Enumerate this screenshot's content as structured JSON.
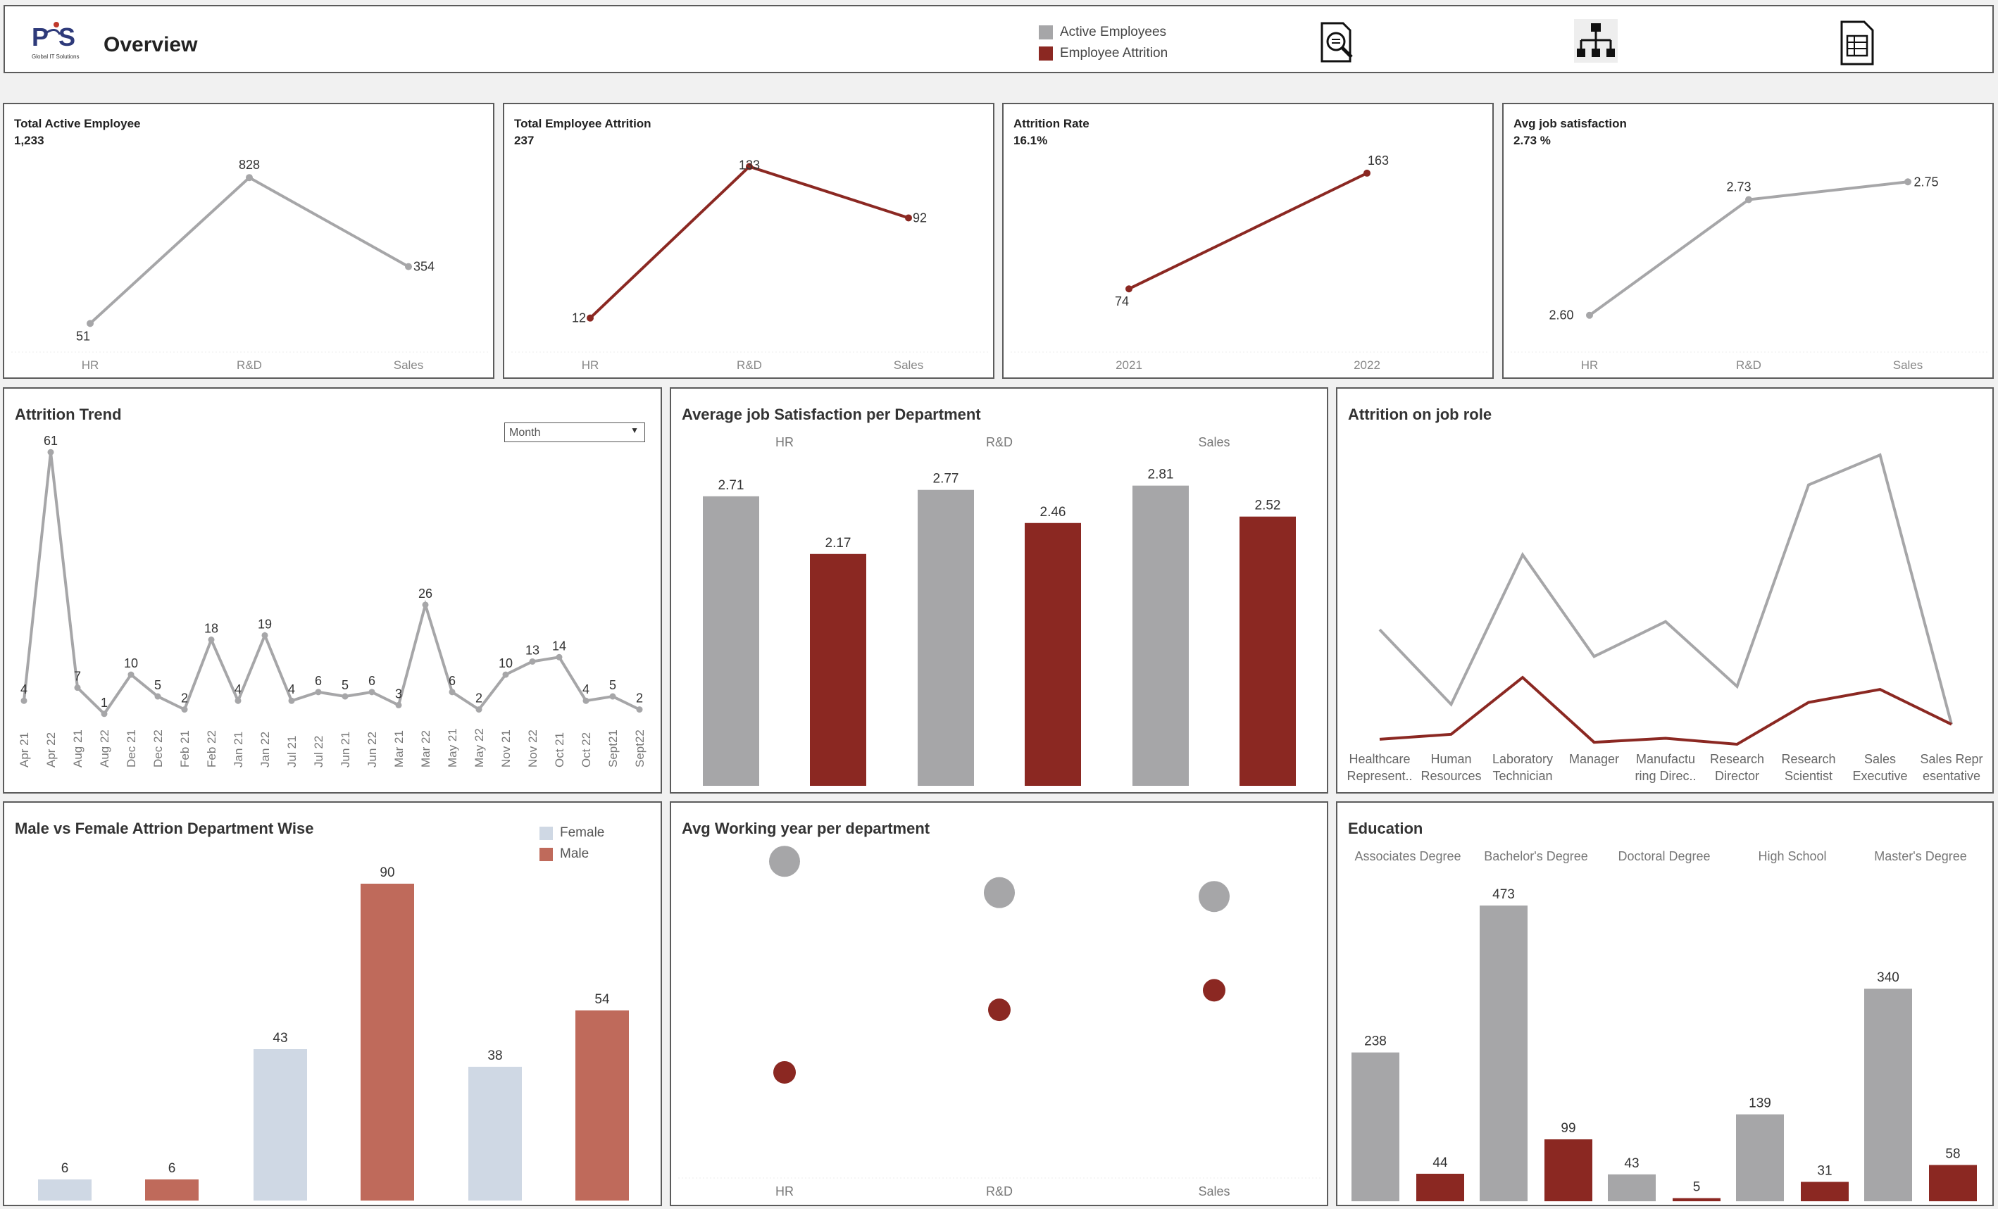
{
  "header": {
    "logo_text": "Global IT Solutions",
    "title": "Overview",
    "legend": [
      {
        "label": "Active Employees",
        "color": "#a6a6a8"
      },
      {
        "label": "Employee Attrition",
        "color": "#8b2822"
      }
    ],
    "nav_icons": [
      "report-search-icon",
      "org-chart-icon",
      "table-sheet-icon"
    ]
  },
  "colors": {
    "active": "#a6a6a8",
    "attrition": "#8b2822",
    "female": "#cfd8e4",
    "male": "#bf6a5b"
  },
  "kpis": [
    {
      "title": "Total Active Employee",
      "value": "1,233",
      "chart_data": {
        "type": "line",
        "x": [
          "HR",
          "R&D",
          "Sales"
        ],
        "values": [
          51,
          828,
          354
        ],
        "labels": [
          "51",
          "828",
          "354"
        ],
        "series_color": "active",
        "ylim": [
          0,
          900
        ]
      }
    },
    {
      "title": "Total Employee Attrition",
      "value": "237",
      "chart_data": {
        "type": "line",
        "x": [
          "HR",
          "R&D",
          "Sales"
        ],
        "values": [
          12,
          133,
          92
        ],
        "labels": [
          "12",
          "133",
          "92"
        ],
        "series_color": "attrition",
        "ylim": [
          0,
          135
        ]
      }
    },
    {
      "title": "Attrition Rate",
      "value": "16.1%",
      "chart_data": {
        "type": "line",
        "x": [
          "2021",
          "2022"
        ],
        "values": [
          74,
          163
        ],
        "labels": [
          "74",
          "163"
        ],
        "series_color": "attrition",
        "ylim": [
          40,
          170
        ]
      }
    },
    {
      "title": "Avg job satisfaction",
      "value": "2.73 %",
      "chart_data": {
        "type": "line",
        "x": [
          "HR",
          "R&D",
          "Sales"
        ],
        "values": [
          2.6,
          2.73,
          2.75
        ],
        "labels": [
          "2.60",
          "2.73",
          "2.75"
        ],
        "series_color": "active",
        "ylim": [
          2.58,
          2.77
        ]
      }
    }
  ],
  "attrition_trend": {
    "title": "Attrition Trend",
    "dropdown_value": "Month",
    "chart_data": {
      "type": "line",
      "x": [
        "Apr 21",
        "Apr 22",
        "Aug 21",
        "Aug 22",
        "Dec 21",
        "Dec 22",
        "Feb 21",
        "Feb 22",
        "Jan 21",
        "Jan 22",
        "Jul 21",
        "Jul 22",
        "Jun 21",
        "Jun 22",
        "Mar 21",
        "Mar 22",
        "May 21",
        "May 22",
        "Nov 21",
        "Nov 22",
        "Oct 21",
        "Oct 22",
        "Sept21",
        "Sept22"
      ],
      "values": [
        4,
        61,
        7,
        1,
        10,
        5,
        2,
        18,
        4,
        19,
        4,
        6,
        5,
        6,
        3,
        26,
        6,
        2,
        10,
        13,
        14,
        4,
        5,
        2
      ],
      "ylim": [
        0,
        62
      ]
    }
  },
  "job_satisfaction": {
    "title": "Average job Satisfaction per Department",
    "chart_data": {
      "type": "bar",
      "categories": [
        "HR",
        "R&D",
        "Sales"
      ],
      "series": [
        {
          "name": "Active Employees",
          "values": [
            2.71,
            2.77,
            2.81
          ]
        },
        {
          "name": "Employee Attrition",
          "values": [
            2.17,
            2.46,
            2.52
          ]
        }
      ],
      "ylim": [
        0,
        2.9
      ]
    }
  },
  "job_role": {
    "title": "Attrition on job role",
    "chart_data": {
      "type": "line",
      "x_lines": [
        [
          "Healthcare",
          "Represent.."
        ],
        [
          "Human",
          "Resources"
        ],
        [
          "Laboratory",
          "Technician"
        ],
        [
          "Manager",
          ""
        ],
        [
          "Manufactu",
          "ring Direc.."
        ],
        [
          "Research",
          "Director"
        ],
        [
          "Research",
          "Scientist"
        ],
        [
          "Sales",
          "Executive"
        ],
        [
          "Sales Repr",
          "esentative"
        ]
      ],
      "series": [
        {
          "name": "Active Employees",
          "values": [
            115,
            40,
            190,
            88,
            123,
            58,
            260,
            290,
            20
          ]
        },
        {
          "name": "Employee Attrition",
          "values": [
            5,
            10,
            67,
            2,
            6,
            0,
            42,
            55,
            20
          ]
        }
      ],
      "ylim": [
        0,
        300
      ]
    }
  },
  "gender": {
    "title": "Male vs Female Attrion Department Wise",
    "legend": [
      "Female",
      "Male"
    ],
    "chart_data": {
      "type": "bar",
      "categories": [
        "HR",
        "R&D",
        "Sales"
      ],
      "series": [
        {
          "name": "Female",
          "values": [
            6,
            43,
            38
          ]
        },
        {
          "name": "Male",
          "values": [
            6,
            90,
            54
          ]
        }
      ],
      "ylim": [
        0,
        90
      ]
    }
  },
  "working_year": {
    "title": "Avg Working year per department",
    "chart_data": {
      "type": "scatter",
      "categories": [
        "HR",
        "R&D",
        "Sales"
      ],
      "series": [
        {
          "name": "Active Employees",
          "values": [
            8.5,
            7.7,
            7.6
          ]
        },
        {
          "name": "Employee Attrition",
          "values": [
            3.1,
            4.7,
            5.2
          ]
        }
      ],
      "ylim": [
        0,
        10
      ]
    }
  },
  "education": {
    "title": "Education",
    "chart_data": {
      "type": "bar",
      "categories": [
        "Associates Degree",
        "Bachelor's Degree",
        "Doctoral Degree",
        "High School",
        "Master's Degree"
      ],
      "series": [
        {
          "name": "Active Employees",
          "values": [
            238,
            473,
            43,
            139,
            340
          ]
        },
        {
          "name": "Employee Attrition",
          "values": [
            44,
            99,
            5,
            31,
            58
          ]
        }
      ],
      "ylim": [
        0,
        473
      ]
    }
  }
}
